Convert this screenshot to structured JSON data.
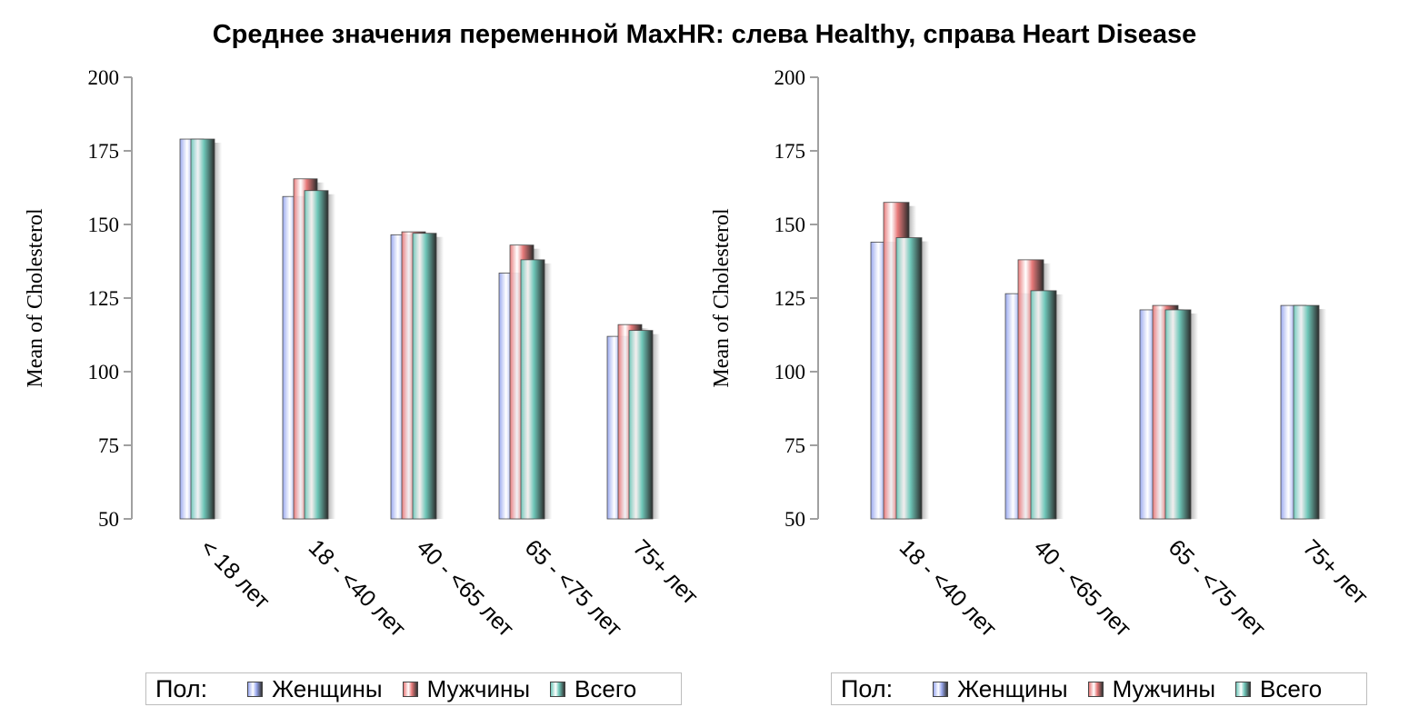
{
  "title": "Среднее значения переменной MaxHR: слева Healthy, справа Heart Disease",
  "legend": {
    "title": "Пол:",
    "items": [
      {
        "label": "Женщины",
        "color": "#9aa9f0"
      },
      {
        "label": "Мужчины",
        "color": "#e87a7a"
      },
      {
        "label": "Всего",
        "color": "#6fc7b9"
      }
    ]
  },
  "chart_data": [
    {
      "type": "bar",
      "ylabel": "Mean of Cholesterol",
      "ylim": [
        50,
        200
      ],
      "yticks": [
        50,
        75,
        100,
        125,
        150,
        175,
        200
      ],
      "categories": [
        "< 18 лет",
        "18 - <40 лет",
        "40 - <65 лет",
        "65 - <75 лет",
        "75+ лет"
      ],
      "series": [
        {
          "name": "Женщины",
          "values": [
            179,
            159.5,
            146.5,
            133.5,
            112
          ]
        },
        {
          "name": "Мужчины",
          "values": [
            null,
            165.5,
            147.5,
            143,
            116
          ]
        },
        {
          "name": "Всего",
          "values": [
            179,
            161.5,
            147,
            138,
            114
          ]
        }
      ]
    },
    {
      "type": "bar",
      "ylabel": "Mean of Cholesterol",
      "ylim": [
        50,
        200
      ],
      "yticks": [
        50,
        75,
        100,
        125,
        150,
        175,
        200
      ],
      "categories": [
        "18 - <40 лет",
        "40 - <65 лет",
        "65 - <75 лет",
        "75+ лет"
      ],
      "series": [
        {
          "name": "Женщины",
          "values": [
            144,
            126.5,
            121,
            122.5
          ]
        },
        {
          "name": "Мужчины",
          "values": [
            157.5,
            138,
            122.5,
            null
          ]
        },
        {
          "name": "Всего",
          "values": [
            145.5,
            127.5,
            121,
            122.5
          ]
        }
      ]
    }
  ]
}
